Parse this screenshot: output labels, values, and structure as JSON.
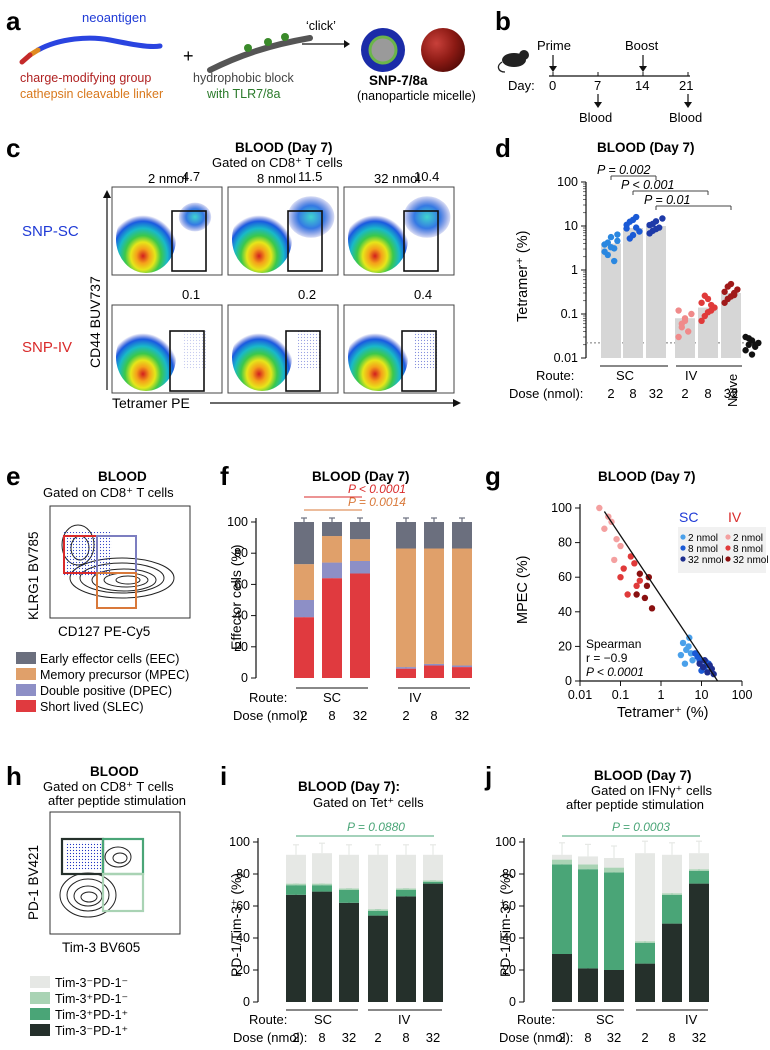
{
  "panel_letters": [
    "a",
    "b",
    "c",
    "d",
    "e",
    "f",
    "g",
    "h",
    "i",
    "j"
  ],
  "a": {
    "neoantigen": "neoantigen",
    "charge_group": "charge-modifying group",
    "linker": "cathepsin cleavable linker",
    "plus": "+",
    "hydrophobic": "hydrophobic block",
    "tlr": "with TLR7/8a",
    "click": "‘click’",
    "snp": "SNP-7/8a",
    "micelle": "(nanoparticle micelle)"
  },
  "b": {
    "prime": "Prime",
    "boost": "Boost",
    "day": "Day:",
    "days": [
      "0",
      "7",
      "14",
      "21"
    ],
    "blood1": "Blood",
    "blood2": "Blood"
  },
  "c": {
    "title": "BLOOD (Day 7)",
    "subtitle": "Gated on CD8⁺ T cells",
    "doses": [
      "2 nmol",
      "8 nmol",
      "32 nmol"
    ],
    "row_sc": "SNP-SC",
    "row_iv": "SNP-IV",
    "sc_values": [
      "4.7",
      "11.5",
      "10.4"
    ],
    "iv_values": [
      "0.1",
      "0.2",
      "0.4"
    ],
    "ylabel": "CD44 BUV737",
    "xlabel": "Tetramer PE"
  },
  "d": {
    "title": "BLOOD (Day 7)",
    "ylabel": "Tetramer⁺ (%)",
    "yticks": [
      "100",
      "10",
      "1",
      "0.1",
      "0.01"
    ],
    "p1": "P = 0.002",
    "p2": "P < 0.001",
    "p3": "P = 0.01",
    "route": "Route:",
    "dose": "Dose (nmol):",
    "sc": "SC",
    "iv": "IV",
    "naive": "Naive",
    "dose_ticks": [
      "2",
      "8",
      "32",
      "2",
      "8",
      "32"
    ]
  },
  "e": {
    "title": "BLOOD",
    "subtitle": "Gated on CD8⁺ T cells",
    "ylabel": "KLRG1 BV785",
    "xlabel": "CD127 PE-Cy5",
    "legend": [
      "Early effector cells (EEC)",
      "Memory precursor (MPEC)",
      "Double positive (DPEC)",
      "Short lived (SLEC)"
    ]
  },
  "f": {
    "title": "BLOOD (Day 7)",
    "p_red": "P < 0.0001",
    "p_orange": "P = 0.0014",
    "ylabel": "Effector cells (%)",
    "yticks": [
      "0",
      "20",
      "40",
      "60",
      "80",
      "100"
    ],
    "route": "Route:",
    "dose": "Dose (nmol):",
    "sc": "SC",
    "iv": "IV",
    "dose_ticks": [
      "2",
      "8",
      "32",
      "2",
      "8",
      "32"
    ]
  },
  "g": {
    "title": "BLOOD (Day 7)",
    "ylabel": "MPEC (%)",
    "xlabel": "Tetramer⁺ (%)",
    "yticks": [
      "0",
      "20",
      "40",
      "60",
      "80",
      "100"
    ],
    "xticks": [
      "0.01",
      "0.1",
      "1",
      "10",
      "100"
    ],
    "sc": "SC",
    "iv": "IV",
    "legend_sc": [
      "2 nmol",
      "8 nmol",
      "32 nmol"
    ],
    "legend_iv": [
      "2 nmol",
      "8 nmol",
      "32 nmol"
    ],
    "stat1": "Spearman",
    "stat2": "r = −0.9",
    "stat3": "P < 0.0001"
  },
  "h": {
    "title": "BLOOD",
    "sub1": "Gated on CD8⁺ T cells",
    "sub2": "after peptide stimulation",
    "ylabel": "PD-1 BV421",
    "xlabel": "Tim-3 BV605",
    "legend": [
      "Tim-3⁻PD-1⁻",
      "Tim-3⁺PD-1⁻",
      "Tim-3⁺PD-1⁺",
      "Tim-3⁻PD-1⁺"
    ]
  },
  "i": {
    "title": "BLOOD (Day 7):",
    "sub1": "Gated on Tet⁺ cells",
    "p": "P = 0.0880",
    "ylabel": "PD-1/Tim-3⁺ (%)",
    "yticks": [
      "0",
      "20",
      "40",
      "60",
      "80",
      "100"
    ],
    "route": "Route:",
    "dose": "Dose (nmol):",
    "sc": "SC",
    "iv": "IV",
    "dose_ticks": [
      "2",
      "8",
      "32",
      "2",
      "8",
      "32"
    ]
  },
  "j": {
    "title": "BLOOD (Day 7)",
    "sub1": "Gated on IFNγ⁺ cells",
    "sub2": "after peptide stimulation",
    "p": "P = 0.0003",
    "ylabel": "PD-1/Tim-3⁺ (%)",
    "yticks": [
      "0",
      "20",
      "40",
      "60",
      "80",
      "100"
    ],
    "route": "Route:",
    "dose": "Dose (nmol):",
    "sc": "SC",
    "iv": "IV",
    "dose_ticks": [
      "2",
      "8",
      "32",
      "2",
      "8",
      "32"
    ]
  },
  "colors": {
    "blue": "#1f5fd6",
    "red": "#d92a2a",
    "orange": "#d9793a",
    "bar_gray": "#d6d6d6",
    "eec": "#6b6f7e",
    "mpec": "#e0a06a",
    "dpec": "#8d8fc6",
    "slec": "#e03a3f",
    "tn_pn": "#e6e8e5",
    "tp_pn": "#a9d3b4",
    "tp_pp": "#4aa577",
    "tn_pp": "#25302b"
  },
  "chart_data": [
    {
      "panel": "d",
      "type": "bar",
      "title": "BLOOD (Day 7)",
      "ylabel": "Tetramer+ (%)",
      "yscale": "log",
      "ylim": [
        0.01,
        100
      ],
      "categories": [
        "SC 2",
        "SC 8",
        "SC 32",
        "IV 2",
        "IV 8",
        "IV 32",
        "Naive"
      ],
      "values": [
        4,
        9,
        10,
        0.08,
        0.14,
        0.3,
        null
      ],
      "points": [
        [
          3.8,
          2.2,
          5.6,
          3.1,
          6.4,
          2.6,
          4.2,
          3.3,
          1.6,
          4.6
        ],
        [
          8.8,
          12.5,
          6.2,
          16,
          7.5,
          10.6,
          5.2,
          13.8,
          9.2
        ],
        [
          10.5,
          7.8,
          12.8,
          9.2,
          14.8,
          6.8,
          11.2,
          8.5
        ],
        [
          0.12,
          0.06,
          0.08,
          0.04,
          0.1,
          0.03,
          0.05,
          0.07
        ],
        [
          0.18,
          0.09,
          0.22,
          0.12,
          0.14,
          0.07,
          0.26,
          0.11,
          0.16
        ],
        [
          0.32,
          0.22,
          0.48,
          0.27,
          0.36,
          0.18,
          0.42,
          0.25,
          0.3
        ],
        [
          0.03,
          0.02,
          0.025,
          0.018,
          0.022,
          0.015,
          0.028,
          0.012,
          0.02
        ]
      ],
      "threshold": 0.022
    },
    {
      "panel": "f",
      "type": "bar",
      "stacked": true,
      "ylabel": "Effector cells (%)",
      "ylim": [
        0,
        100
      ],
      "categories": [
        "SC 2",
        "SC 8",
        "SC 32",
        "IV 2",
        "IV 8",
        "IV 32"
      ],
      "series": [
        {
          "name": "SLEC",
          "values": [
            39,
            64,
            67,
            6,
            8,
            7
          ]
        },
        {
          "name": "DPEC",
          "values": [
            11,
            10,
            8,
            1,
            1,
            1
          ]
        },
        {
          "name": "MPEC",
          "values": [
            23,
            17,
            14,
            76,
            74,
            75
          ]
        },
        {
          "name": "EEC",
          "values": [
            27,
            9,
            11,
            17,
            17,
            17
          ]
        }
      ]
    },
    {
      "panel": "g",
      "type": "scatter",
      "xlabel": "Tetramer+ (%)",
      "ylabel": "MPEC (%)",
      "xscale": "log",
      "xlim": [
        0.01,
        100
      ],
      "ylim": [
        0,
        100
      ],
      "series": [
        {
          "name": "SC 2 nmol",
          "points": [
            [
              3.5,
              22
            ],
            [
              4.2,
              18
            ],
            [
              5.0,
              25
            ],
            [
              3.1,
              15
            ],
            [
              6.0,
              12
            ],
            [
              4.8,
              20
            ],
            [
              3.9,
              10
            ],
            [
              5.5,
              16
            ]
          ]
        },
        {
          "name": "SC 8 nmol",
          "points": [
            [
              9,
              12
            ],
            [
              12,
              8
            ],
            [
              8,
              14
            ],
            [
              15,
              10
            ],
            [
              10,
              6
            ],
            [
              7,
              16
            ],
            [
              13,
              11
            ]
          ]
        },
        {
          "name": "SC 32 nmol",
          "points": [
            [
              11,
              8
            ],
            [
              14,
              5
            ],
            [
              9,
              10
            ],
            [
              18,
              7
            ],
            [
              12,
              12
            ],
            [
              20,
              4
            ],
            [
              16,
              9
            ]
          ]
        },
        {
          "name": "IV 2 nmol",
          "points": [
            [
              0.03,
              100
            ],
            [
              0.05,
              95
            ],
            [
              0.04,
              88
            ],
            [
              0.08,
              82
            ],
            [
              0.06,
              92
            ],
            [
              0.1,
              78
            ],
            [
              0.07,
              70
            ]
          ]
        },
        {
          "name": "IV 8 nmol",
          "points": [
            [
              0.12,
              65
            ],
            [
              0.18,
              72
            ],
            [
              0.1,
              60
            ],
            [
              0.25,
              55
            ],
            [
              0.15,
              50
            ],
            [
              0.22,
              68
            ],
            [
              0.3,
              58
            ]
          ]
        },
        {
          "name": "IV 32 nmol",
          "points": [
            [
              0.3,
              62
            ],
            [
              0.45,
              55
            ],
            [
              0.25,
              50
            ],
            [
              0.6,
              42
            ],
            [
              0.5,
              60
            ],
            [
              0.4,
              48
            ]
          ]
        }
      ],
      "fit": {
        "slope_label": "r = -0.9"
      }
    },
    {
      "panel": "i",
      "type": "bar",
      "stacked": true,
      "ylabel": "PD-1/Tim-3+ (%)",
      "ylim": [
        0,
        100
      ],
      "categories": [
        "SC 2",
        "SC 8",
        "SC 32",
        "IV 2",
        "IV 8",
        "IV 32"
      ],
      "series": [
        {
          "name": "Tim-3-PD-1+",
          "values": [
            67,
            69,
            62,
            54,
            66,
            74
          ]
        },
        {
          "name": "Tim-3+PD-1+",
          "values": [
            6,
            4,
            8,
            3,
            4,
            1
          ]
        },
        {
          "name": "Tim-3+PD-1-",
          "values": [
            1,
            1,
            1,
            1,
            1,
            1
          ]
        },
        {
          "name": "Tim-3-PD-1-",
          "values": [
            18,
            19,
            21,
            34,
            21,
            16
          ]
        }
      ]
    },
    {
      "panel": "j",
      "type": "bar",
      "stacked": true,
      "ylabel": "PD-1/Tim-3+ (%)",
      "ylim": [
        0,
        100
      ],
      "categories": [
        "SC 2",
        "SC 8",
        "SC 32",
        "IV 2",
        "IV 8",
        "IV 32"
      ],
      "series": [
        {
          "name": "Tim-3-PD-1+",
          "values": [
            30,
            21,
            20,
            24,
            49,
            74
          ]
        },
        {
          "name": "Tim-3+PD-1+",
          "values": [
            56,
            62,
            61,
            13,
            18,
            8
          ]
        },
        {
          "name": "Tim-3+PD-1-",
          "values": [
            3,
            3,
            3,
            1,
            1,
            1
          ]
        },
        {
          "name": "Tim-3-PD-1-",
          "values": [
            3,
            5,
            6,
            55,
            24,
            10
          ]
        }
      ]
    }
  ]
}
